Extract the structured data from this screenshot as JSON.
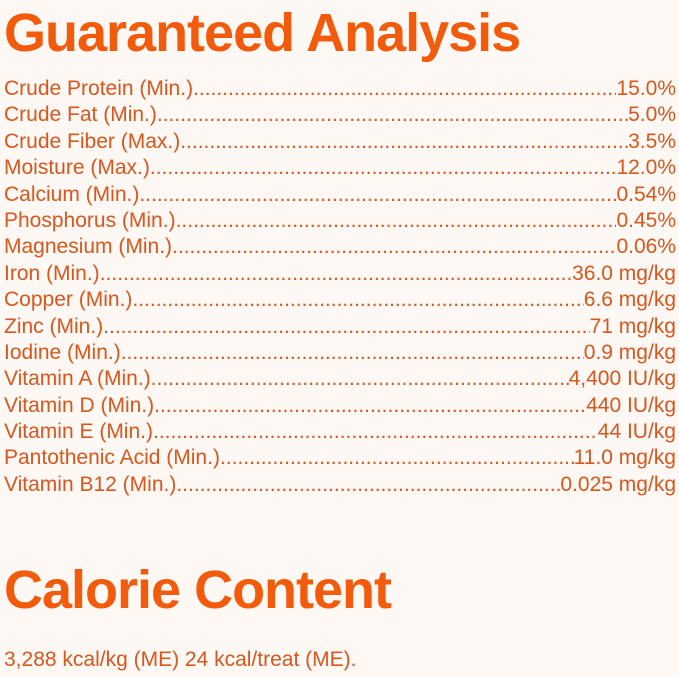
{
  "guaranteed_analysis": {
    "title": "Guaranteed Analysis",
    "rows": [
      {
        "label": "Crude Protein (Min.)",
        "value": "15.0%"
      },
      {
        "label": "Crude Fat (Min.)",
        "value": "5.0%"
      },
      {
        "label": "Crude Fiber (Max.)",
        "value": "3.5%"
      },
      {
        "label": "Moisture (Max.)",
        "value": "12.0%"
      },
      {
        "label": "Calcium (Min.)",
        "value": "0.54%"
      },
      {
        "label": "Phosphorus (Min.)",
        "value": "0.45%"
      },
      {
        "label": "Magnesium (Min.)",
        "value": "0.06%"
      },
      {
        "label": "Iron (Min.)",
        "value": " 36.0 mg/kg"
      },
      {
        "label": "Copper (Min.)",
        "value": " 6.6 mg/kg"
      },
      {
        "label": "Zinc (Min.)",
        "value": "71 mg/kg"
      },
      {
        "label": "Iodine (Min.)",
        "value": "0.9 mg/kg"
      },
      {
        "label": "Vitamin A (Min.)",
        "value": " 4,400 IU/kg"
      },
      {
        "label": "Vitamin D (Min.)",
        "value": " 440 IU/kg"
      },
      {
        "label": "Vitamin E (Min.)",
        "value": "44 IU/kg"
      },
      {
        "label": "Pantothenic Acid (Min.)",
        "value": "11.0 mg/kg"
      },
      {
        "label": "Vitamin B12 (Min.)",
        "value": " 0.025 mg/kg"
      }
    ]
  },
  "calorie_content": {
    "title": "Calorie Content",
    "text": "3,288 kcal/kg (ME) 24 kcal/treat (ME)."
  },
  "colors": {
    "heading": "#f25a0c",
    "text": "#d9561c",
    "background": "#fdf8f4"
  }
}
